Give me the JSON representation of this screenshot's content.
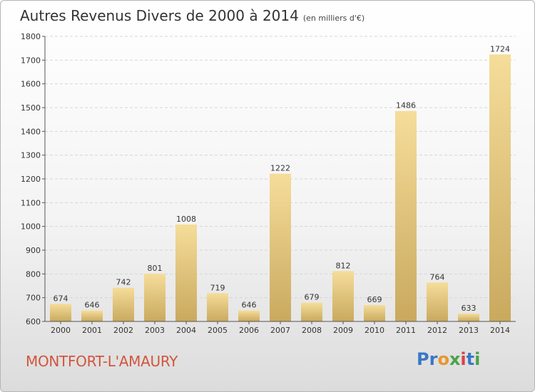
{
  "header": {
    "title": "Autres Revenus Divers de 2000 à 2014",
    "unit": "(en milliers d'€)"
  },
  "footer": {
    "city": "MONTFORT-L'AMAURY",
    "logo": {
      "letters": [
        "P",
        "r",
        "o",
        "x",
        "i",
        "t",
        "i"
      ],
      "colors": [
        "#3a77c6",
        "#3a77c6",
        "#e8962e",
        "#4aa34a",
        "#d64545",
        "#3a77c6",
        "#4aa34a"
      ]
    }
  },
  "colors": {
    "bar_light": "#f5dd9a",
    "bar_dark": "#c9a95e",
    "grid": "#d6d6d6",
    "axis": "#555555",
    "city": "#d2553e"
  },
  "chart_data": {
    "type": "bar",
    "title": "Autres Revenus Divers de 2000 à 2014",
    "subtitle": "(en milliers d'€)",
    "xlabel": "",
    "ylabel": "",
    "categories": [
      "2000",
      "2001",
      "2002",
      "2003",
      "2004",
      "2005",
      "2006",
      "2007",
      "2008",
      "2009",
      "2010",
      "2011",
      "2012",
      "2013",
      "2014"
    ],
    "values": [
      674,
      646,
      742,
      801,
      1008,
      719,
      646,
      1222,
      679,
      812,
      669,
      1486,
      764,
      633,
      1724
    ],
    "ylim": [
      600,
      1800
    ],
    "yticks": [
      600,
      700,
      800,
      900,
      1000,
      1100,
      1200,
      1300,
      1400,
      1500,
      1600,
      1700,
      1800
    ],
    "grid": true,
    "legend": "none"
  }
}
